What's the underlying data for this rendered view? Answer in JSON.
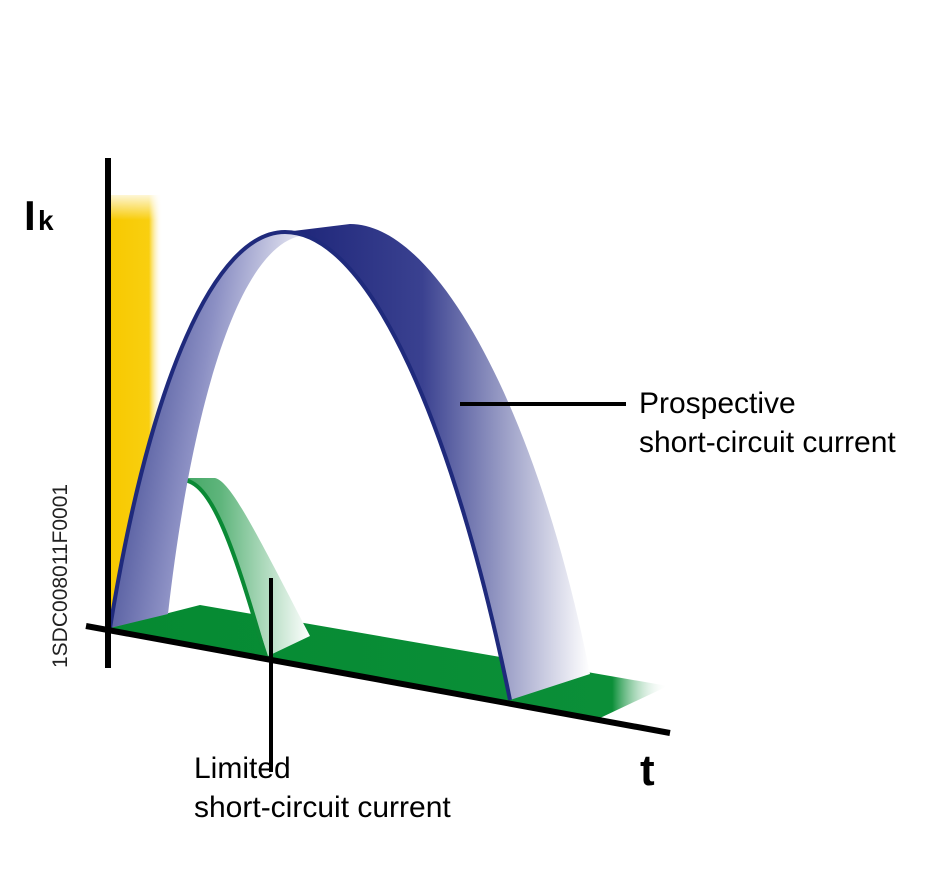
{
  "axes": {
    "y_label": "I",
    "y_label_subscript": "k",
    "x_label": "t"
  },
  "labels": {
    "prospective": [
      "Prospective",
      "short-circuit current"
    ],
    "limited": [
      "Limited",
      "short-circuit current"
    ]
  },
  "figure_code": "1SDC008011F0001"
}
